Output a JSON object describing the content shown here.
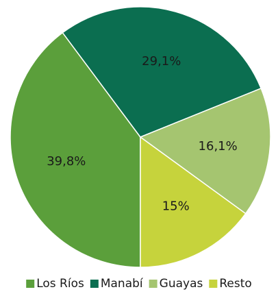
{
  "chart_data": {
    "type": "pie",
    "categories": [
      "Los Ríos",
      "Manabí",
      "Guayas",
      "Resto"
    ],
    "values": [
      39.8,
      29.1,
      16.1,
      15
    ],
    "value_labels": [
      "39,8%",
      "29,1%",
      "16,1%",
      "15%"
    ],
    "colors": [
      "#5b9f3b",
      "#0b6e50",
      "#a5c570",
      "#c6d33c"
    ],
    "legend": "bottom"
  }
}
